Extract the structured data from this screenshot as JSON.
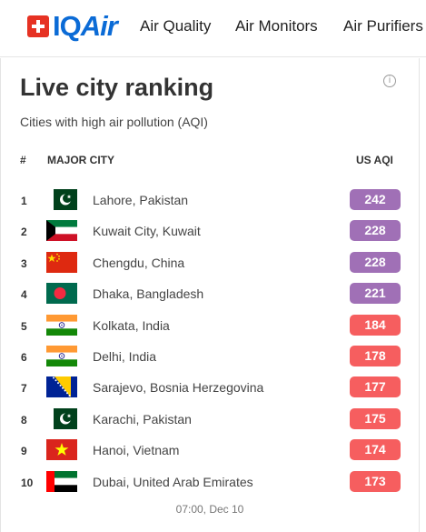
{
  "nav": {
    "logo": {
      "prefix": "IQ",
      "suffix": "Air"
    },
    "items": [
      "Air Quality",
      "Air Monitors",
      "Air Purifiers"
    ]
  },
  "ranking": {
    "title": "Live city ranking",
    "subtitle": "Cities with high air pollution (AQI)",
    "info_icon": "info-icon",
    "columns": {
      "rank": "#",
      "city": "MAJOR CITY",
      "aqi": "US AQI"
    },
    "rows": [
      {
        "rank": "1",
        "city": "Lahore, Pakistan",
        "aqi": "242",
        "flag": "pakistan-flag",
        "level": "very-unhealthy"
      },
      {
        "rank": "2",
        "city": "Kuwait City, Kuwait",
        "aqi": "228",
        "flag": "kuwait-flag",
        "level": "very-unhealthy"
      },
      {
        "rank": "3",
        "city": "Chengdu, China",
        "aqi": "228",
        "flag": "china-flag",
        "level": "very-unhealthy"
      },
      {
        "rank": "4",
        "city": "Dhaka, Bangladesh",
        "aqi": "221",
        "flag": "bangladesh-flag",
        "level": "very-unhealthy"
      },
      {
        "rank": "5",
        "city": "Kolkata, India",
        "aqi": "184",
        "flag": "india-flag",
        "level": "unhealthy"
      },
      {
        "rank": "6",
        "city": "Delhi, India",
        "aqi": "178",
        "flag": "india-flag",
        "level": "unhealthy"
      },
      {
        "rank": "7",
        "city": "Sarajevo, Bosnia Herzegovina",
        "aqi": "177",
        "flag": "bosnia-flag",
        "level": "unhealthy"
      },
      {
        "rank": "8",
        "city": "Karachi, Pakistan",
        "aqi": "175",
        "flag": "pakistan-flag",
        "level": "unhealthy"
      },
      {
        "rank": "9",
        "city": "Hanoi, Vietnam",
        "aqi": "174",
        "flag": "vietnam-flag",
        "level": "unhealthy"
      },
      {
        "rank": "10",
        "city": "Dubai, United Arab Emirates",
        "aqi": "173",
        "flag": "uae-flag",
        "level": "unhealthy"
      }
    ],
    "timestamp": "07:00, Dec 10"
  },
  "colors": {
    "brand_red": "#e63223",
    "brand_blue": "#0b6bd6",
    "very-unhealthy": "#a070b6",
    "unhealthy": "#f65e5f"
  }
}
